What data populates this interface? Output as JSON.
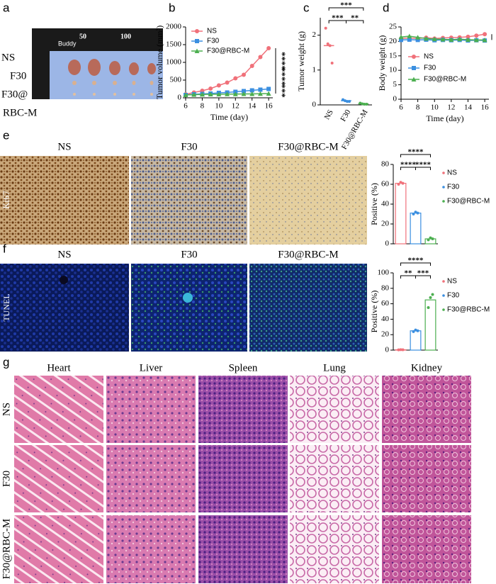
{
  "panel_letters": [
    "a",
    "b",
    "c",
    "d",
    "e",
    "f",
    "g"
  ],
  "photo": {
    "row_labels": [
      "NS",
      "F30",
      "F30@",
      "RBC-M"
    ],
    "ruler_texts": [
      "Buddy",
      "50",
      "100"
    ]
  },
  "chart_data": [
    {
      "type": "line",
      "ylabel": "Tumor volume (mm³)",
      "xlabel": "Time (day)",
      "x": [
        6,
        7,
        8,
        9,
        10,
        11,
        12,
        13,
        14,
        15,
        16
      ],
      "xlim": [
        6,
        16.5
      ],
      "xticks": [
        6,
        8,
        10,
        12,
        14,
        16
      ],
      "ylim": [
        0,
        2000
      ],
      "yticks": [
        0,
        500,
        1000,
        1500,
        2000
      ],
      "legend": "upper left",
      "series": [
        {
          "name": "NS",
          "color": "#f0717a",
          "marker": "circle",
          "values": [
            100,
            150,
            200,
            260,
            350,
            430,
            550,
            650,
            900,
            1150,
            1400
          ]
        },
        {
          "name": "F30",
          "color": "#3b8fe0",
          "marker": "square",
          "values": [
            80,
            100,
            110,
            120,
            140,
            150,
            170,
            190,
            210,
            230,
            250
          ]
        },
        {
          "name": "F30@RBC-M",
          "color": "#4caf50",
          "marker": "triangle",
          "values": [
            80,
            90,
            95,
            100,
            100,
            105,
            105,
            110,
            110,
            115,
            120
          ]
        }
      ],
      "annotations": [
        "****",
        "****",
        "***"
      ]
    },
    {
      "type": "dot",
      "ylabel": "Tumor weight (g)",
      "categories": [
        "NS",
        "F30",
        "F30@RBC-M"
      ],
      "colors": [
        "#f0717a",
        "#3b8fe0",
        "#4caf50"
      ],
      "values": [
        1.7,
        0.12,
        0.03
      ],
      "points": [
        [
          2.2,
          1.75,
          1.7,
          1.2
        ],
        [
          0.15,
          0.12,
          0.1,
          0.1
        ],
        [
          0.05,
          0.03,
          0.02,
          0.02
        ]
      ],
      "ylim": [
        0,
        2.5
      ],
      "yticks": [
        0,
        1,
        2
      ],
      "annotations": [
        "***",
        "***",
        "**"
      ]
    },
    {
      "type": "line",
      "ylabel": "Body weight (g)",
      "xlabel": "Time (day)",
      "x": [
        6,
        7,
        8,
        9,
        10,
        11,
        12,
        13,
        14,
        15,
        16
      ],
      "xlim": [
        6,
        16.5
      ],
      "xticks": [
        6,
        8,
        10,
        12,
        14,
        16
      ],
      "ylim": [
        0,
        25
      ],
      "yticks": [
        0,
        5,
        10,
        15,
        20,
        25
      ],
      "legend": "center",
      "series": [
        {
          "name": "NS",
          "color": "#f0717a",
          "marker": "circle",
          "values": [
            21,
            21.2,
            21,
            21.3,
            21,
            21.2,
            21.3,
            21.4,
            21.6,
            22,
            22.5
          ]
        },
        {
          "name": "F30",
          "color": "#3b8fe0",
          "marker": "square",
          "values": [
            20.5,
            20.6,
            20.5,
            20.6,
            20.4,
            20.5,
            20.4,
            20.5,
            20.3,
            20.4,
            20.3
          ]
        },
        {
          "name": "F30@RBC-M",
          "color": "#4caf50",
          "marker": "triangle",
          "values": [
            21.5,
            21.8,
            21.4,
            21,
            20.8,
            20.7,
            20.6,
            20.8,
            20.6,
            20.5,
            20.5
          ]
        }
      ],
      "annotations": []
    },
    {
      "type": "bar",
      "ylabel": "Positive (%)",
      "categories": [
        "NS",
        "F30",
        "F30@RBC-M"
      ],
      "colors": [
        "#f0717a",
        "#3b8fe0",
        "#4caf50"
      ],
      "values": [
        61,
        31,
        5
      ],
      "points": [
        [
          60,
          62,
          61
        ],
        [
          30,
          32,
          31
        ],
        [
          4,
          6,
          5
        ]
      ],
      "ylim": [
        0,
        80
      ],
      "yticks": [
        0,
        20,
        40,
        60,
        80
      ],
      "legend": "right",
      "annotations": [
        "****",
        "****",
        "****"
      ]
    },
    {
      "type": "bar",
      "ylabel": "Positive (%)",
      "categories": [
        "NS",
        "F30",
        "F30@RBC-M"
      ],
      "colors": [
        "#f0717a",
        "#3b8fe0",
        "#4caf50"
      ],
      "values": [
        0.5,
        25,
        65
      ],
      "points": [
        [
          0.3,
          0.6,
          0.5
        ],
        [
          24,
          26,
          25
        ],
        [
          55,
          68,
          72
        ]
      ],
      "ylim": [
        0,
        100
      ],
      "yticks": [
        0,
        20,
        40,
        60,
        80,
        100
      ],
      "legend": "right",
      "annotations": [
        "****",
        "**",
        "***"
      ]
    }
  ],
  "ki67": {
    "row_label": "Ki67",
    "columns": [
      "NS",
      "F30",
      "F30@RBC-M"
    ]
  },
  "tunel": {
    "row_label": "TUNEL",
    "columns": [
      "NS",
      "F30",
      "F30@RBC-M"
    ]
  },
  "histology": {
    "columns": [
      "Heart",
      "Liver",
      "Spleen",
      "Lung",
      "Kidney"
    ],
    "rows": [
      "NS",
      "F30",
      "F30@RBC-M"
    ]
  }
}
